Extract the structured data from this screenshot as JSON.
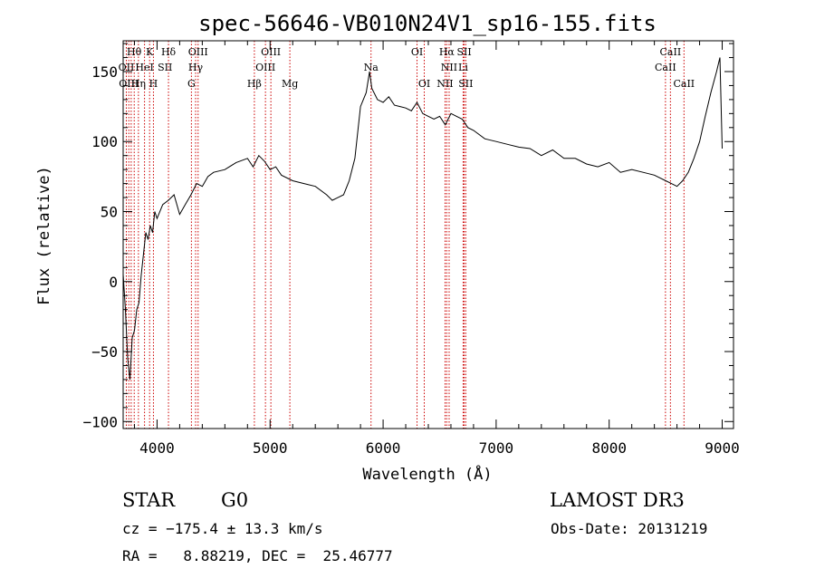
{
  "chart_data": {
    "type": "line",
    "title": "spec-56646-VB010N24V1_sp16-155.fits",
    "xlabel": "Wavelength (Å)",
    "ylabel": "Flux (relative)",
    "xlim": [
      3700,
      9100
    ],
    "ylim": [
      -105,
      172
    ],
    "xticks": [
      4000,
      5000,
      6000,
      7000,
      8000,
      9000
    ],
    "yticks": [
      -100,
      -50,
      0,
      50,
      100,
      150
    ],
    "grid": false,
    "line_color": "#000000",
    "marker_color": "#cc0000",
    "series": [
      {
        "x": [
          3700,
          3720,
          3740,
          3760,
          3780,
          3800,
          3820,
          3840,
          3860,
          3880,
          3900,
          3920,
          3940,
          3960,
          3980,
          4000,
          4050,
          4100,
          4150,
          4200,
          4250,
          4300,
          4350,
          4400,
          4450,
          4500,
          4600,
          4700,
          4800,
          4850,
          4900,
          4950,
          5000,
          5050,
          5100,
          5200,
          5300,
          5400,
          5500,
          5550,
          5600,
          5650,
          5700,
          5750,
          5800,
          5850,
          5880,
          5900,
          5950,
          6000,
          6050,
          6100,
          6150,
          6200,
          6250,
          6300,
          6350,
          6400,
          6450,
          6500,
          6550,
          6600,
          6650,
          6700,
          6750,
          6800,
          6900,
          7000,
          7100,
          7200,
          7300,
          7400,
          7500,
          7600,
          7700,
          7800,
          7900,
          8000,
          8100,
          8200,
          8300,
          8400,
          8500,
          8550,
          8600,
          8650,
          8700,
          8750,
          8800,
          8850,
          8900,
          8950,
          8980,
          9000
        ],
        "values": [
          5,
          -20,
          -55,
          -70,
          -40,
          -35,
          -20,
          -15,
          5,
          20,
          35,
          30,
          40,
          35,
          50,
          45,
          55,
          58,
          62,
          48,
          55,
          62,
          70,
          68,
          75,
          78,
          80,
          85,
          88,
          82,
          90,
          86,
          80,
          82,
          76,
          72,
          70,
          68,
          62,
          58,
          60,
          62,
          72,
          88,
          125,
          135,
          150,
          138,
          130,
          128,
          132,
          126,
          125,
          124,
          122,
          128,
          120,
          118,
          116,
          118,
          112,
          120,
          118,
          116,
          110,
          108,
          102,
          100,
          98,
          96,
          95,
          90,
          94,
          88,
          88,
          84,
          82,
          85,
          78,
          80,
          78,
          76,
          72,
          70,
          68,
          72,
          78,
          88,
          100,
          118,
          135,
          150,
          160,
          95
        ]
      }
    ],
    "line_markers": {
      "wavelengths": [
        3728,
        3750,
        3771,
        3798,
        3835,
        3889,
        3934,
        3968,
        4101,
        4304,
        4341,
        4363,
        4861,
        4959,
        5007,
        5175,
        5893,
        6300,
        6364,
        6548,
        6563,
        6584,
        6708,
        6717,
        6731,
        8498,
        8542,
        8662
      ]
    },
    "line_labels": [
      {
        "text": "Hθ",
        "wl": 3797,
        "row": 1
      },
      {
        "text": "K",
        "wl": 3934,
        "row": 1
      },
      {
        "text": "Hδ",
        "wl": 4101,
        "row": 1
      },
      {
        "text": "OIII",
        "wl": 4363,
        "row": 1
      },
      {
        "text": "OIII",
        "wl": 5007,
        "row": 1
      },
      {
        "text": "OI",
        "wl": 6300,
        "row": 1
      },
      {
        "text": "Hα",
        "wl": 6563,
        "row": 1
      },
      {
        "text": "SII",
        "wl": 6717,
        "row": 1
      },
      {
        "text": "CaII",
        "wl": 8542,
        "row": 1
      },
      {
        "text": "OII",
        "wl": 3728,
        "row": 2
      },
      {
        "text": "HeI",
        "wl": 3889,
        "row": 2
      },
      {
        "text": "SII",
        "wl": 4070,
        "row": 2
      },
      {
        "text": "Hγ",
        "wl": 4341,
        "row": 2
      },
      {
        "text": "OIII",
        "wl": 4959,
        "row": 2
      },
      {
        "text": "Na",
        "wl": 5893,
        "row": 2
      },
      {
        "text": "NII",
        "wl": 6584,
        "row": 2
      },
      {
        "text": "Li",
        "wl": 6708,
        "row": 2
      },
      {
        "text": "CaII",
        "wl": 8498,
        "row": 2
      },
      {
        "text": "OIII",
        "wl": 3750,
        "row": 3
      },
      {
        "text": "Hη",
        "wl": 3835,
        "row": 3
      },
      {
        "text": "H",
        "wl": 3968,
        "row": 3
      },
      {
        "text": "G",
        "wl": 4304,
        "row": 3
      },
      {
        "text": "Hβ",
        "wl": 4861,
        "row": 3
      },
      {
        "text": "Mg",
        "wl": 5175,
        "row": 3
      },
      {
        "text": "OI",
        "wl": 6364,
        "row": 3
      },
      {
        "text": "NII",
        "wl": 6548,
        "row": 3
      },
      {
        "text": "SII",
        "wl": 6731,
        "row": 3
      },
      {
        "text": "CaII",
        "wl": 8662,
        "row": 3
      }
    ]
  },
  "info": {
    "class_label": "STAR",
    "subclass": "G0",
    "survey": "LAMOST DR3",
    "cz": "cz = −175.4 ± 13.3 km/s",
    "obs_date": "Obs-Date: 20131219",
    "coords": "RA =   8.88219, DEC =  25.46777"
  }
}
